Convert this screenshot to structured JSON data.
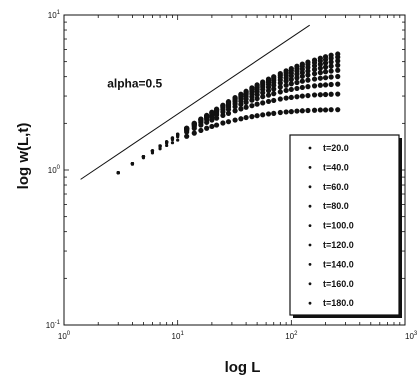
{
  "chart_data": {
    "type": "scatter",
    "title": "",
    "xlabel": "log L",
    "ylabel": "log w(L,t)",
    "x_scale": "log",
    "y_scale": "log",
    "xlim": [
      1,
      1000
    ],
    "ylim": [
      0.1,
      10
    ],
    "x_ticks": [
      {
        "base": "10",
        "exp": "0",
        "value": 1
      },
      {
        "base": "10",
        "exp": "1",
        "value": 10
      },
      {
        "base": "10",
        "exp": "2",
        "value": 100
      },
      {
        "base": "10",
        "exp": "3",
        "value": 1000
      }
    ],
    "y_ticks": [
      {
        "base": "10",
        "exp": "-1",
        "value": 0.1
      },
      {
        "base": "10",
        "exp": "0",
        "value": 1
      },
      {
        "base": "10",
        "exp": "1",
        "value": 10
      }
    ],
    "grid": false,
    "legend_position": "bottom-right",
    "annotation": {
      "text": "alpha=0.5",
      "x": 2.4,
      "y": 3.4
    },
    "reference_line": {
      "slope": 0.5,
      "x": [
        1.4,
        145
      ],
      "y": [
        0.87,
        8.6
      ]
    },
    "x": [
      3,
      4,
      5,
      6,
      7,
      8,
      9,
      10,
      12,
      14,
      16,
      18,
      20,
      22,
      25,
      28,
      32,
      36,
      40,
      45,
      50,
      56,
      63,
      70,
      80,
      90,
      100,
      112,
      125,
      140,
      160,
      180,
      200,
      224,
      256
    ],
    "series": [
      {
        "name": "t=20.0",
        "values": [
          0.96,
          1.09,
          1.2,
          1.29,
          1.37,
          1.44,
          1.5,
          1.56,
          1.65,
          1.73,
          1.8,
          1.86,
          1.91,
          1.95,
          2.01,
          2.05,
          2.1,
          2.14,
          2.18,
          2.21,
          2.24,
          2.27,
          2.3,
          2.32,
          2.35,
          2.37,
          2.38,
          2.4,
          2.41,
          2.42,
          2.43,
          2.44,
          2.44,
          2.45,
          2.45
        ]
      },
      {
        "name": "t=40.0",
        "values": [
          0.96,
          1.1,
          1.22,
          1.32,
          1.41,
          1.49,
          1.57,
          1.64,
          1.76,
          1.86,
          1.95,
          2.03,
          2.1,
          2.16,
          2.25,
          2.32,
          2.41,
          2.48,
          2.54,
          2.6,
          2.66,
          2.71,
          2.77,
          2.81,
          2.87,
          2.91,
          2.94,
          2.97,
          3.0,
          3.02,
          3.05,
          3.06,
          3.07,
          3.08,
          3.09
        ]
      },
      {
        "name": "t=60.0",
        "values": [
          0.96,
          1.1,
          1.22,
          1.33,
          1.43,
          1.51,
          1.59,
          1.67,
          1.8,
          1.92,
          2.02,
          2.11,
          2.19,
          2.27,
          2.37,
          2.46,
          2.56,
          2.65,
          2.73,
          2.82,
          2.89,
          2.97,
          3.04,
          3.11,
          3.19,
          3.26,
          3.31,
          3.36,
          3.41,
          3.45,
          3.49,
          3.52,
          3.54,
          3.56,
          3.58
        ]
      },
      {
        "name": "t=80.0",
        "values": [
          0.96,
          1.1,
          1.22,
          1.33,
          1.43,
          1.52,
          1.6,
          1.68,
          1.82,
          1.95,
          2.06,
          2.16,
          2.25,
          2.33,
          2.45,
          2.55,
          2.67,
          2.78,
          2.87,
          2.97,
          3.06,
          3.15,
          3.25,
          3.33,
          3.43,
          3.52,
          3.6,
          3.67,
          3.74,
          3.8,
          3.86,
          3.91,
          3.94,
          3.98,
          4.01
        ]
      },
      {
        "name": "t=100.0",
        "values": [
          0.96,
          1.1,
          1.22,
          1.33,
          1.43,
          1.52,
          1.61,
          1.69,
          1.84,
          1.97,
          2.09,
          2.19,
          2.29,
          2.38,
          2.51,
          2.62,
          2.76,
          2.88,
          2.98,
          3.1,
          3.2,
          3.31,
          3.42,
          3.52,
          3.64,
          3.75,
          3.84,
          3.93,
          4.02,
          4.1,
          4.18,
          4.25,
          4.3,
          4.35,
          4.4
        ]
      },
      {
        "name": "t=120.0",
        "values": [
          0.96,
          1.1,
          1.22,
          1.33,
          1.43,
          1.52,
          1.61,
          1.7,
          1.85,
          1.98,
          2.1,
          2.21,
          2.32,
          2.41,
          2.55,
          2.67,
          2.82,
          2.95,
          3.07,
          3.2,
          3.31,
          3.44,
          3.56,
          3.67,
          3.81,
          3.93,
          4.04,
          4.15,
          4.25,
          4.35,
          4.45,
          4.54,
          4.61,
          4.68,
          4.74
        ]
      },
      {
        "name": "t=140.0",
        "values": [
          0.96,
          1.1,
          1.22,
          1.33,
          1.43,
          1.52,
          1.61,
          1.7,
          1.85,
          1.99,
          2.12,
          2.23,
          2.34,
          2.44,
          2.58,
          2.71,
          2.87,
          3.0,
          3.13,
          3.28,
          3.4,
          3.54,
          3.68,
          3.8,
          3.96,
          4.1,
          4.22,
          4.35,
          4.47,
          4.59,
          4.7,
          4.81,
          4.9,
          4.98,
          5.06
        ]
      },
      {
        "name": "t=160.0",
        "values": [
          0.96,
          1.1,
          1.22,
          1.33,
          1.43,
          1.52,
          1.61,
          1.7,
          1.86,
          2.0,
          2.13,
          2.24,
          2.35,
          2.45,
          2.6,
          2.74,
          2.9,
          3.05,
          3.18,
          3.34,
          3.48,
          3.63,
          3.78,
          3.91,
          4.09,
          4.24,
          4.38,
          4.52,
          4.66,
          4.8,
          4.93,
          5.06,
          5.16,
          5.26,
          5.35
        ]
      },
      {
        "name": "t=180.0",
        "values": [
          0.96,
          1.1,
          1.22,
          1.33,
          1.43,
          1.52,
          1.61,
          1.7,
          1.86,
          2.0,
          2.13,
          2.25,
          2.36,
          2.47,
          2.62,
          2.76,
          2.93,
          3.08,
          3.22,
          3.39,
          3.54,
          3.7,
          3.86,
          4.0,
          4.19,
          4.36,
          4.51,
          4.67,
          4.82,
          4.97,
          5.12,
          5.26,
          5.38,
          5.5,
          5.6
        ]
      }
    ]
  }
}
